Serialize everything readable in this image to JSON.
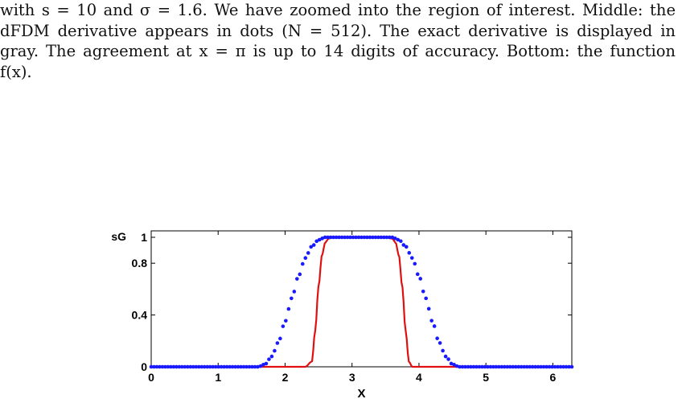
{
  "caption": {
    "lines": [
      "with s = 10 and σ = 1.6. We have zoomed into the region of interest. Middle: the",
      "dFDM derivative appears in dots (N = 512). The exact derivative is displayed in",
      "gray. The agreement at x = π is up to 14 digits of accuracy. Bottom: the function",
      "f(x)."
    ]
  },
  "chart_data": {
    "type": "line",
    "title": "",
    "xlabel": "X",
    "ylabel": "sG",
    "xlim": [
      0,
      6.2832
    ],
    "ylim": [
      0,
      1
    ],
    "x_ticks": [
      0,
      1,
      2,
      3,
      4,
      5,
      6
    ],
    "x_tick_labels": [
      "0",
      "1",
      "2",
      "3",
      "4",
      "5",
      "6"
    ],
    "y_ticks": [
      0,
      0.4,
      0.8,
      1
    ],
    "y_tick_labels": [
      "0",
      "0.4",
      "0.8",
      "1"
    ],
    "grid": false,
    "legend": "none",
    "series": [
      {
        "style": "dots",
        "color": "#1a1aff",
        "x": [
          1.6,
          1.7,
          1.8,
          1.9,
          2.0,
          2.1,
          2.2,
          2.3,
          2.4,
          2.5,
          2.6,
          2.7,
          2.8,
          2.9,
          3.0,
          3.1,
          3.2,
          3.3,
          3.4,
          3.5,
          3.6,
          3.7,
          3.8,
          3.9,
          4.0,
          4.1,
          4.2,
          4.3,
          4.4,
          4.5,
          4.6,
          4.7
        ],
        "values": [
          0.0,
          0.02,
          0.08,
          0.19,
          0.35,
          0.53,
          0.7,
          0.84,
          0.93,
          0.98,
          1.0,
          1.0,
          1.0,
          1.0,
          1.0,
          1.0,
          1.0,
          1.0,
          1.0,
          1.0,
          1.0,
          0.98,
          0.93,
          0.84,
          0.7,
          0.53,
          0.35,
          0.19,
          0.08,
          0.02,
          0.0,
          0.0
        ]
      },
      {
        "style": "line",
        "color": "#e01010",
        "x": [
          2.3,
          2.4,
          2.45,
          2.5,
          2.55,
          2.6,
          2.65,
          2.7,
          2.8,
          3.0,
          3.2,
          3.4,
          3.5,
          3.6,
          3.65,
          3.7,
          3.75,
          3.8,
          3.85,
          3.9,
          4.0
        ],
        "values": [
          0.0,
          0.04,
          0.28,
          0.62,
          0.86,
          0.96,
          0.99,
          1.0,
          1.0,
          1.0,
          1.0,
          1.0,
          1.0,
          0.99,
          0.96,
          0.86,
          0.62,
          0.28,
          0.04,
          0.0,
          0.0
        ]
      }
    ]
  }
}
